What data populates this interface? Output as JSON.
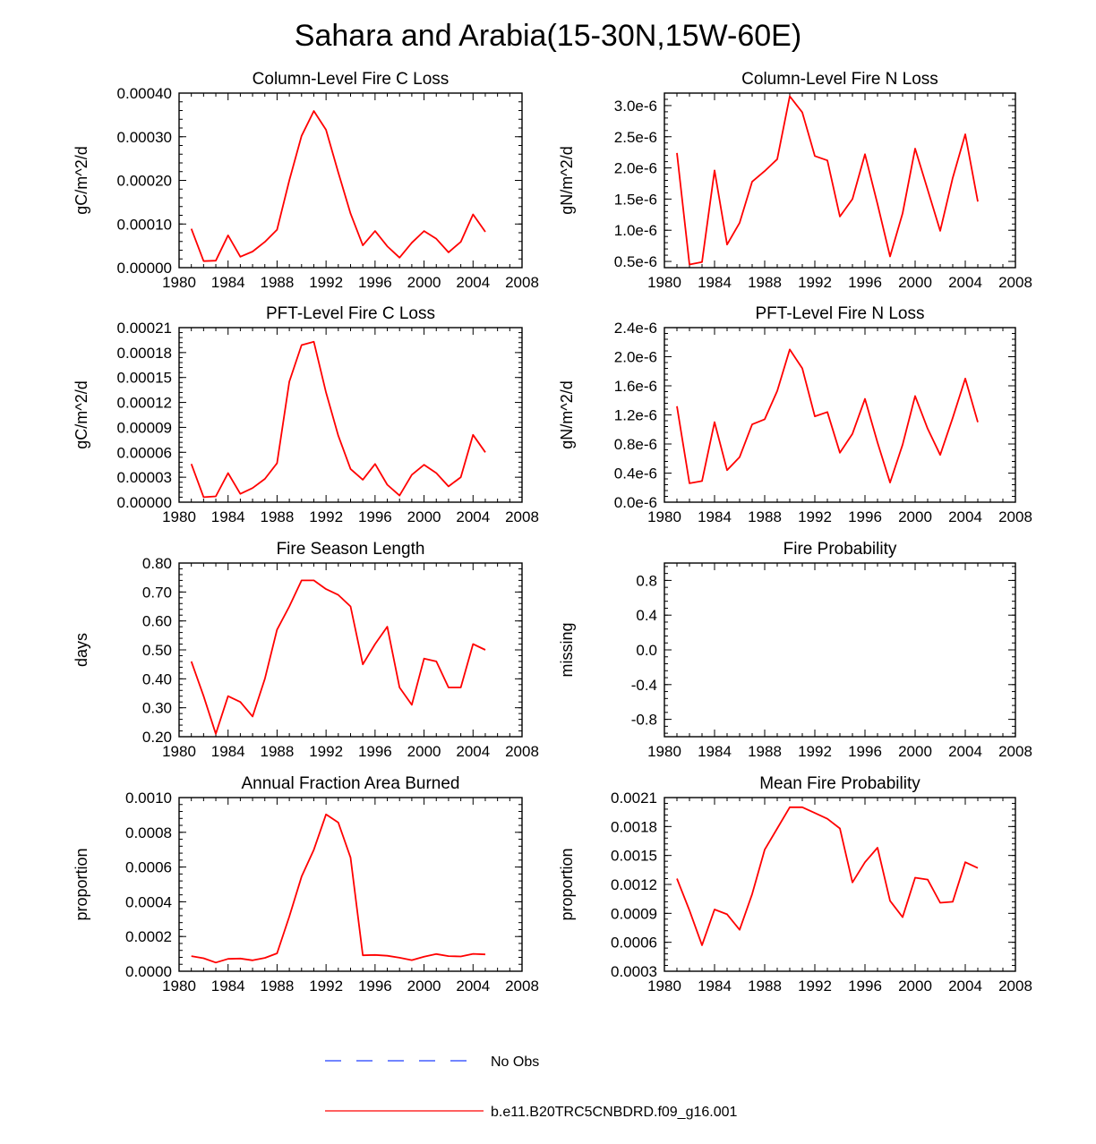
{
  "figure": {
    "title": "Sahara and Arabia(15-30N,15W-60E)",
    "legend": [
      {
        "label": "No Obs",
        "color": "#1e3cff",
        "style": "dashed"
      },
      {
        "label": "b.e11.B20TRC5CNBDRD.f09_g16.001",
        "color": "#ff0000",
        "style": "solid"
      }
    ]
  },
  "chart_data": [
    {
      "type": "line",
      "title": "Column-Level Fire C Loss",
      "xlabel": "",
      "ylabel": "gC/m^2/d",
      "xlim": [
        1980,
        2008
      ],
      "ylim": [
        0,
        0.0004
      ],
      "xticks": [
        "1980",
        "1984",
        "1988",
        "1992",
        "1996",
        "2000",
        "2004",
        "2008"
      ],
      "yticks": [
        {
          "v": 0,
          "label": "0.00000"
        },
        {
          "v": 0.0001,
          "label": "0.00010"
        },
        {
          "v": 0.0002,
          "label": "0.00020"
        },
        {
          "v": 0.0003,
          "label": "0.00030"
        },
        {
          "v": 0.0004,
          "label": "0.00040"
        }
      ],
      "series": [
        {
          "name": "b.e11.B20TRC5CNBDRD.f09_g16.001",
          "x": [
            1981,
            1982,
            1983,
            1984,
            1985,
            1986,
            1987,
            1988,
            1989,
            1990,
            1991,
            1992,
            1993,
            1994,
            1995,
            1996,
            1997,
            1998,
            1999,
            2000,
            2001,
            2002,
            2003,
            2004,
            2005
          ],
          "y": [
            8.9e-05,
            1.5e-05,
            1.6e-05,
            7.4e-05,
            2.5e-05,
            3.7e-05,
            5.9e-05,
            8.7e-05,
            0.0002,
            0.000302,
            0.000359,
            0.000316,
            0.000218,
            0.000124,
            5.1e-05,
            8.4e-05,
            4.9e-05,
            2.3e-05,
            5.7e-05,
            8.4e-05,
            6.6e-05,
            3.5e-05,
            5.9e-05,
            0.000122,
            8.2e-05
          ]
        }
      ]
    },
    {
      "type": "line",
      "title": "Column-Level Fire N Loss",
      "xlabel": "",
      "ylabel": "gN/m^2/d",
      "xlim": [
        1980,
        2008
      ],
      "ylim": [
        4e-07,
        3.2e-06
      ],
      "xticks": [
        "1980",
        "1984",
        "1988",
        "1992",
        "1996",
        "2000",
        "2004",
        "2008"
      ],
      "yticks": [
        {
          "v": 5e-07,
          "label": "0.5e-6"
        },
        {
          "v": 1e-06,
          "label": "1.0e-6"
        },
        {
          "v": 1.5e-06,
          "label": "1.5e-6"
        },
        {
          "v": 2e-06,
          "label": "2.0e-6"
        },
        {
          "v": 2.5e-06,
          "label": "2.5e-6"
        },
        {
          "v": 3e-06,
          "label": "3.0e-6"
        }
      ],
      "series": [
        {
          "name": "b.e11.B20TRC5CNBDRD.f09_g16.001",
          "x": [
            1981,
            1982,
            1983,
            1984,
            1985,
            1986,
            1987,
            1988,
            1989,
            1990,
            1991,
            1992,
            1993,
            1994,
            1995,
            1996,
            1997,
            1998,
            1999,
            2000,
            2001,
            2002,
            2003,
            2004,
            2005
          ],
          "y": [
            2.24e-06,
            4.5e-07,
            4.9e-07,
            1.96e-06,
            7.7e-07,
            1.12e-06,
            1.78e-06,
            1.95e-06,
            2.14e-06,
            3.15e-06,
            2.89e-06,
            2.19e-06,
            2.12e-06,
            1.22e-06,
            1.5e-06,
            2.22e-06,
            1.42e-06,
            5.8e-07,
            1.27e-06,
            2.31e-06,
            1.65e-06,
            9.9e-07,
            1.84e-06,
            2.54e-06,
            1.46e-06
          ]
        }
      ]
    },
    {
      "type": "line",
      "title": "PFT-Level Fire C Loss",
      "xlabel": "",
      "ylabel": "gC/m^2/d",
      "xlim": [
        1980,
        2008
      ],
      "ylim": [
        0,
        0.00021
      ],
      "xticks": [
        "1980",
        "1984",
        "1988",
        "1992",
        "1996",
        "2000",
        "2004",
        "2008"
      ],
      "yticks": [
        {
          "v": 0,
          "label": "0.00000"
        },
        {
          "v": 3e-05,
          "label": "0.00003"
        },
        {
          "v": 6e-05,
          "label": "0.00006"
        },
        {
          "v": 9e-05,
          "label": "0.00009"
        },
        {
          "v": 0.00012,
          "label": "0.00012"
        },
        {
          "v": 0.00015,
          "label": "0.00015"
        },
        {
          "v": 0.00018,
          "label": "0.00018"
        },
        {
          "v": 0.00021,
          "label": "0.00021"
        }
      ],
      "series": [
        {
          "name": "b.e11.B20TRC5CNBDRD.f09_g16.001",
          "x": [
            1981,
            1982,
            1983,
            1984,
            1985,
            1986,
            1987,
            1988,
            1989,
            1990,
            1991,
            1992,
            1993,
            1994,
            1995,
            1996,
            1997,
            1998,
            1999,
            2000,
            2001,
            2002,
            2003,
            2004,
            2005
          ],
          "y": [
            4.6e-05,
            6e-06,
            7e-06,
            3.5e-05,
            1e-05,
            1.7e-05,
            2.8e-05,
            4.7e-05,
            0.000145,
            0.000189,
            0.000193,
            0.000132,
            8e-05,
            4e-05,
            2.7e-05,
            4.6e-05,
            2.1e-05,
            8e-06,
            3.3e-05,
            4.5e-05,
            3.5e-05,
            1.9e-05,
            3e-05,
            8.1e-05,
            6e-05
          ]
        }
      ]
    },
    {
      "type": "line",
      "title": "PFT-Level Fire N Loss",
      "xlabel": "",
      "ylabel": "gN/m^2/d",
      "xlim": [
        1980,
        2008
      ],
      "ylim": [
        0,
        2.4e-06
      ],
      "xticks": [
        "1980",
        "1984",
        "1988",
        "1992",
        "1996",
        "2000",
        "2004",
        "2008"
      ],
      "yticks": [
        {
          "v": 0,
          "label": "0.0e-6"
        },
        {
          "v": 4e-07,
          "label": "0.4e-6"
        },
        {
          "v": 8e-07,
          "label": "0.8e-6"
        },
        {
          "v": 1.2e-06,
          "label": "1.2e-6"
        },
        {
          "v": 1.6e-06,
          "label": "1.6e-6"
        },
        {
          "v": 2e-06,
          "label": "2.0e-6"
        },
        {
          "v": 2.4e-06,
          "label": "2.4e-6"
        }
      ],
      "series": [
        {
          "name": "b.e11.B20TRC5CNBDRD.f09_g16.001",
          "x": [
            1981,
            1982,
            1983,
            1984,
            1985,
            1986,
            1987,
            1988,
            1989,
            1990,
            1991,
            1992,
            1993,
            1994,
            1995,
            1996,
            1997,
            1998,
            1999,
            2000,
            2001,
            2002,
            2003,
            2004,
            2005
          ],
          "y": [
            1.32e-06,
            2.6e-07,
            2.9e-07,
            1.1e-06,
            4.4e-07,
            6.2e-07,
            1.07e-06,
            1.14e-06,
            1.53e-06,
            2.1e-06,
            1.84e-06,
            1.18e-06,
            1.24e-06,
            6.8e-07,
            9.4e-07,
            1.42e-06,
            8.2e-07,
            2.7e-07,
            7.9e-07,
            1.46e-06,
            1.01e-06,
            6.5e-07,
            1.16e-06,
            1.7e-06,
            1.1e-06
          ]
        }
      ]
    },
    {
      "type": "line",
      "title": "Fire Season Length",
      "xlabel": "",
      "ylabel": "days",
      "xlim": [
        1980,
        2008
      ],
      "ylim": [
        0.2,
        0.8
      ],
      "xticks": [
        "1980",
        "1984",
        "1988",
        "1992",
        "1996",
        "2000",
        "2004",
        "2008"
      ],
      "yticks": [
        {
          "v": 0.2,
          "label": "0.20"
        },
        {
          "v": 0.3,
          "label": "0.30"
        },
        {
          "v": 0.4,
          "label": "0.40"
        },
        {
          "v": 0.5,
          "label": "0.50"
        },
        {
          "v": 0.6,
          "label": "0.60"
        },
        {
          "v": 0.7,
          "label": "0.70"
        },
        {
          "v": 0.8,
          "label": "0.80"
        }
      ],
      "series": [
        {
          "name": "b.e11.B20TRC5CNBDRD.f09_g16.001",
          "x": [
            1981,
            1982,
            1983,
            1984,
            1985,
            1986,
            1987,
            1988,
            1989,
            1990,
            1991,
            1992,
            1993,
            1994,
            1995,
            1996,
            1997,
            1998,
            1999,
            2000,
            2001,
            2002,
            2003,
            2004,
            2005
          ],
          "y": [
            0.46,
            0.34,
            0.21,
            0.34,
            0.32,
            0.27,
            0.4,
            0.57,
            0.65,
            0.74,
            0.74,
            0.71,
            0.69,
            0.65,
            0.45,
            0.52,
            0.58,
            0.37,
            0.31,
            0.47,
            0.46,
            0.37,
            0.37,
            0.52,
            0.5
          ]
        }
      ]
    },
    {
      "type": "line",
      "title": "Fire Probability",
      "xlabel": "",
      "ylabel": "missing",
      "xlim": [
        1980,
        2008
      ],
      "ylim": [
        -1.0,
        1.0
      ],
      "xticks": [
        "1980",
        "1984",
        "1988",
        "1992",
        "1996",
        "2000",
        "2004",
        "2008"
      ],
      "yticks": [
        {
          "v": -0.8,
          "label": "-0.8"
        },
        {
          "v": -0.4,
          "label": "-0.4"
        },
        {
          "v": 0,
          "label": "0.0"
        },
        {
          "v": 0.4,
          "label": "0.4"
        },
        {
          "v": 0.8,
          "label": "0.8"
        }
      ],
      "series": []
    },
    {
      "type": "line",
      "title": "Annual Fraction Area Burned",
      "xlabel": "",
      "ylabel": "proportion",
      "xlim": [
        1980,
        2008
      ],
      "ylim": [
        0,
        0.001
      ],
      "xticks": [
        "1980",
        "1984",
        "1988",
        "1992",
        "1996",
        "2000",
        "2004",
        "2008"
      ],
      "yticks": [
        {
          "v": 0,
          "label": "0.0000"
        },
        {
          "v": 0.0002,
          "label": "0.0002"
        },
        {
          "v": 0.0004,
          "label": "0.0004"
        },
        {
          "v": 0.0006,
          "label": "0.0006"
        },
        {
          "v": 0.0008,
          "label": "0.0008"
        },
        {
          "v": 0.001,
          "label": "0.0010"
        }
      ],
      "series": [
        {
          "name": "b.e11.B20TRC5CNBDRD.f09_g16.001",
          "x": [
            1981,
            1982,
            1983,
            1984,
            1985,
            1986,
            1987,
            1988,
            1989,
            1990,
            1991,
            1992,
            1993,
            1994,
            1995,
            1996,
            1997,
            1998,
            1999,
            2000,
            2001,
            2002,
            2003,
            2004,
            2005
          ],
          "y": [
            8.7e-05,
            7.5e-05,
            5e-05,
            7.1e-05,
            7.3e-05,
            6.3e-05,
            7.7e-05,
            0.000103,
            0.000315,
            0.000545,
            0.0007,
            0.000903,
            0.000856,
            0.000654,
            9.2e-05,
            9.4e-05,
            8.9e-05,
            7.8e-05,
            6.4e-05,
            8.4e-05,
            9.9e-05,
            8.7e-05,
            8.5e-05,
            0.0001,
            9.7e-05
          ]
        }
      ]
    },
    {
      "type": "line",
      "title": "Mean Fire Probability",
      "xlabel": "",
      "ylabel": "proportion",
      "xlim": [
        1980,
        2008
      ],
      "ylim": [
        0.0003,
        0.0021
      ],
      "xticks": [
        "1980",
        "1984",
        "1988",
        "1992",
        "1996",
        "2000",
        "2004",
        "2008"
      ],
      "yticks": [
        {
          "v": 0.0003,
          "label": "0.0003"
        },
        {
          "v": 0.0006,
          "label": "0.0006"
        },
        {
          "v": 0.0009,
          "label": "0.0009"
        },
        {
          "v": 0.0012,
          "label": "0.0012"
        },
        {
          "v": 0.0015,
          "label": "0.0015"
        },
        {
          "v": 0.0018,
          "label": "0.0018"
        },
        {
          "v": 0.0021,
          "label": "0.0021"
        }
      ],
      "series": [
        {
          "name": "b.e11.B20TRC5CNBDRD.f09_g16.001",
          "x": [
            1981,
            1982,
            1983,
            1984,
            1985,
            1986,
            1987,
            1988,
            1989,
            1990,
            1991,
            1992,
            1993,
            1994,
            1995,
            1996,
            1997,
            1998,
            1999,
            2000,
            2001,
            2002,
            2003,
            2004,
            2005
          ],
          "y": [
            0.00126,
            0.00093,
            0.00057,
            0.00094,
            0.00089,
            0.00073,
            0.0011,
            0.00156,
            0.00178,
            0.002,
            0.002,
            0.00194,
            0.00188,
            0.00178,
            0.00122,
            0.00143,
            0.00158,
            0.00103,
            0.00086,
            0.00127,
            0.00125,
            0.00101,
            0.00102,
            0.00143,
            0.00137
          ]
        }
      ]
    }
  ]
}
